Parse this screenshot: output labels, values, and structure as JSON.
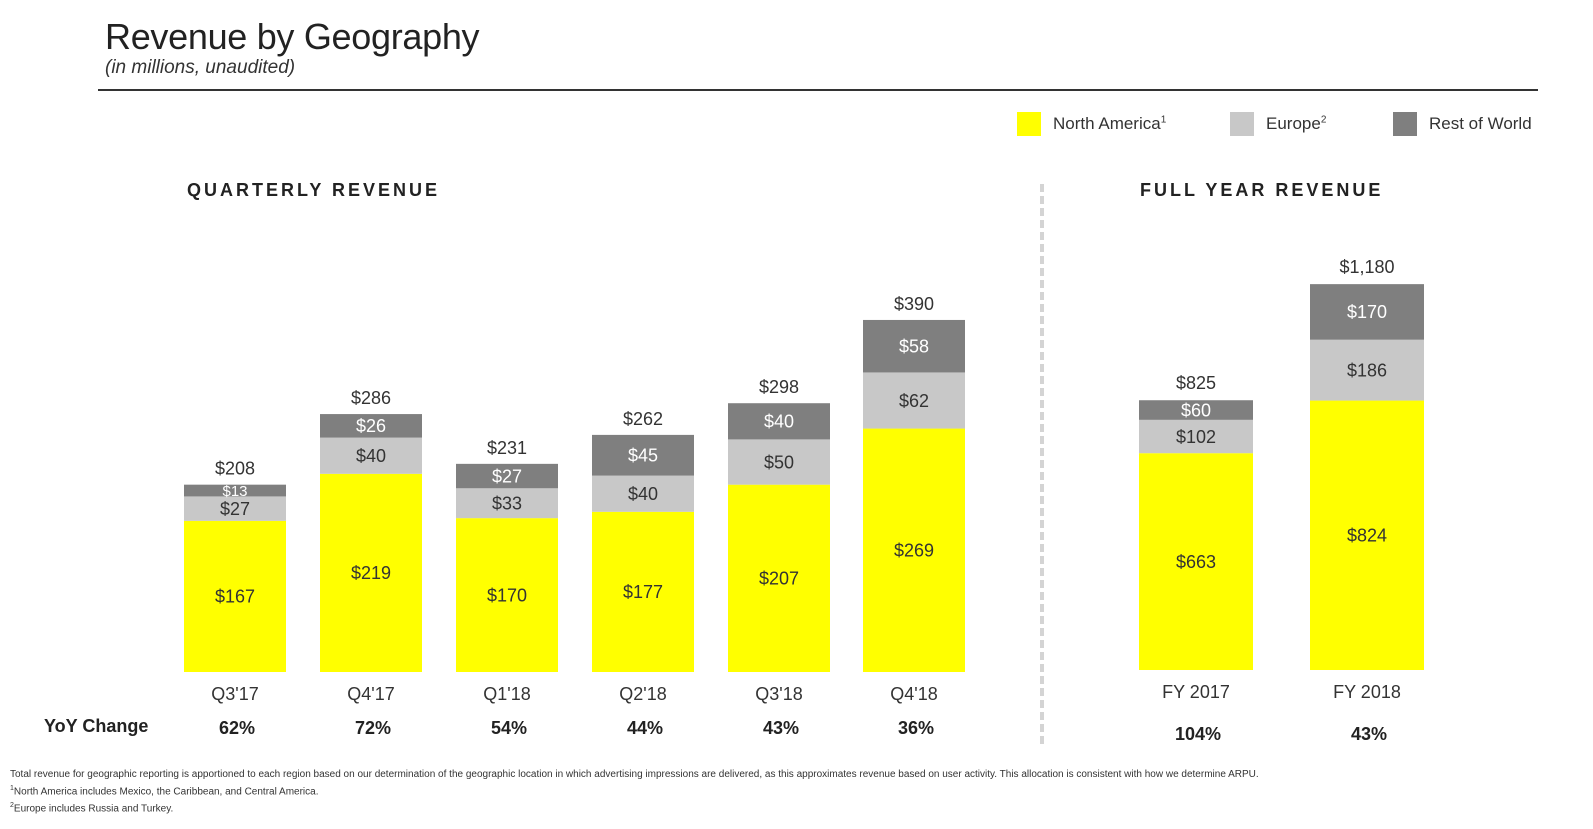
{
  "header": {
    "title": "Revenue by Geography",
    "subtitle": "(in millions, unaudited)"
  },
  "legend": [
    {
      "label": "North America",
      "sup": "1",
      "color": "#ffff00"
    },
    {
      "label": "Europe",
      "sup": "2",
      "color": "#c8c8c8"
    },
    {
      "label": "Rest of World",
      "sup": "",
      "color": "#7f7f7f"
    }
  ],
  "sections": {
    "quarterly_title": "QUARTERLY REVENUE",
    "full_year_title": "FULL YEAR REVENUE",
    "yoy_label": "YoY Change"
  },
  "chart_data": [
    {
      "type": "bar",
      "stacked": true,
      "title": "QUARTERLY REVENUE",
      "categories": [
        "Q3'17",
        "Q4'17",
        "Q1'18",
        "Q2'18",
        "Q3'18",
        "Q4'18"
      ],
      "series": [
        {
          "name": "North America",
          "color": "#ffff00",
          "values": [
            167,
            219,
            170,
            177,
            207,
            269
          ],
          "labels": [
            "$167",
            "$219",
            "$170",
            "$177",
            "$207",
            "$269"
          ]
        },
        {
          "name": "Europe",
          "color": "#c8c8c8",
          "values": [
            27,
            40,
            33,
            40,
            50,
            62
          ],
          "labels": [
            "$27",
            "$40",
            "$33",
            "$40",
            "$50",
            "$62"
          ]
        },
        {
          "name": "Rest of World",
          "color": "#7f7f7f",
          "values": [
            13,
            26,
            27,
            45,
            40,
            58
          ],
          "labels": [
            "$13",
            "$26",
            "$27",
            "$45",
            "$40",
            "$58"
          ]
        }
      ],
      "totals": [
        208,
        286,
        231,
        262,
        298,
        390
      ],
      "total_labels": [
        "$208",
        "$286",
        "$231",
        "$262",
        "$298",
        "$390"
      ],
      "yoy_change": [
        "62%",
        "72%",
        "54%",
        "44%",
        "43%",
        "36%"
      ]
    },
    {
      "type": "bar",
      "stacked": true,
      "title": "FULL YEAR REVENUE",
      "categories": [
        "FY 2017",
        "FY 2018"
      ],
      "series": [
        {
          "name": "North America",
          "color": "#ffff00",
          "values": [
            663,
            824
          ],
          "labels": [
            "$663",
            "$824"
          ]
        },
        {
          "name": "Europe",
          "color": "#c8c8c8",
          "values": [
            102,
            186
          ],
          "labels": [
            "$102",
            "$186"
          ]
        },
        {
          "name": "Rest of World",
          "color": "#7f7f7f",
          "values": [
            60,
            170
          ],
          "labels": [
            "$60",
            "$170"
          ]
        }
      ],
      "totals": [
        825,
        1180
      ],
      "total_labels": [
        "$825",
        "$1,180"
      ],
      "yoy_change": [
        "104%",
        "43%"
      ]
    }
  ],
  "footnotes": {
    "line1": "Total revenue for geographic reporting is apportioned to each region based on our determination of the geographic location in which advertising impressions are delivered, as this approximates revenue based on user activity.  This allocation is consistent with how we determine ARPU.",
    "line2_sup": "1",
    "line2": "North America includes Mexico, the Caribbean, and Central America.",
    "line3_sup": "2",
    "line3": "Europe includes Russia and Turkey."
  }
}
